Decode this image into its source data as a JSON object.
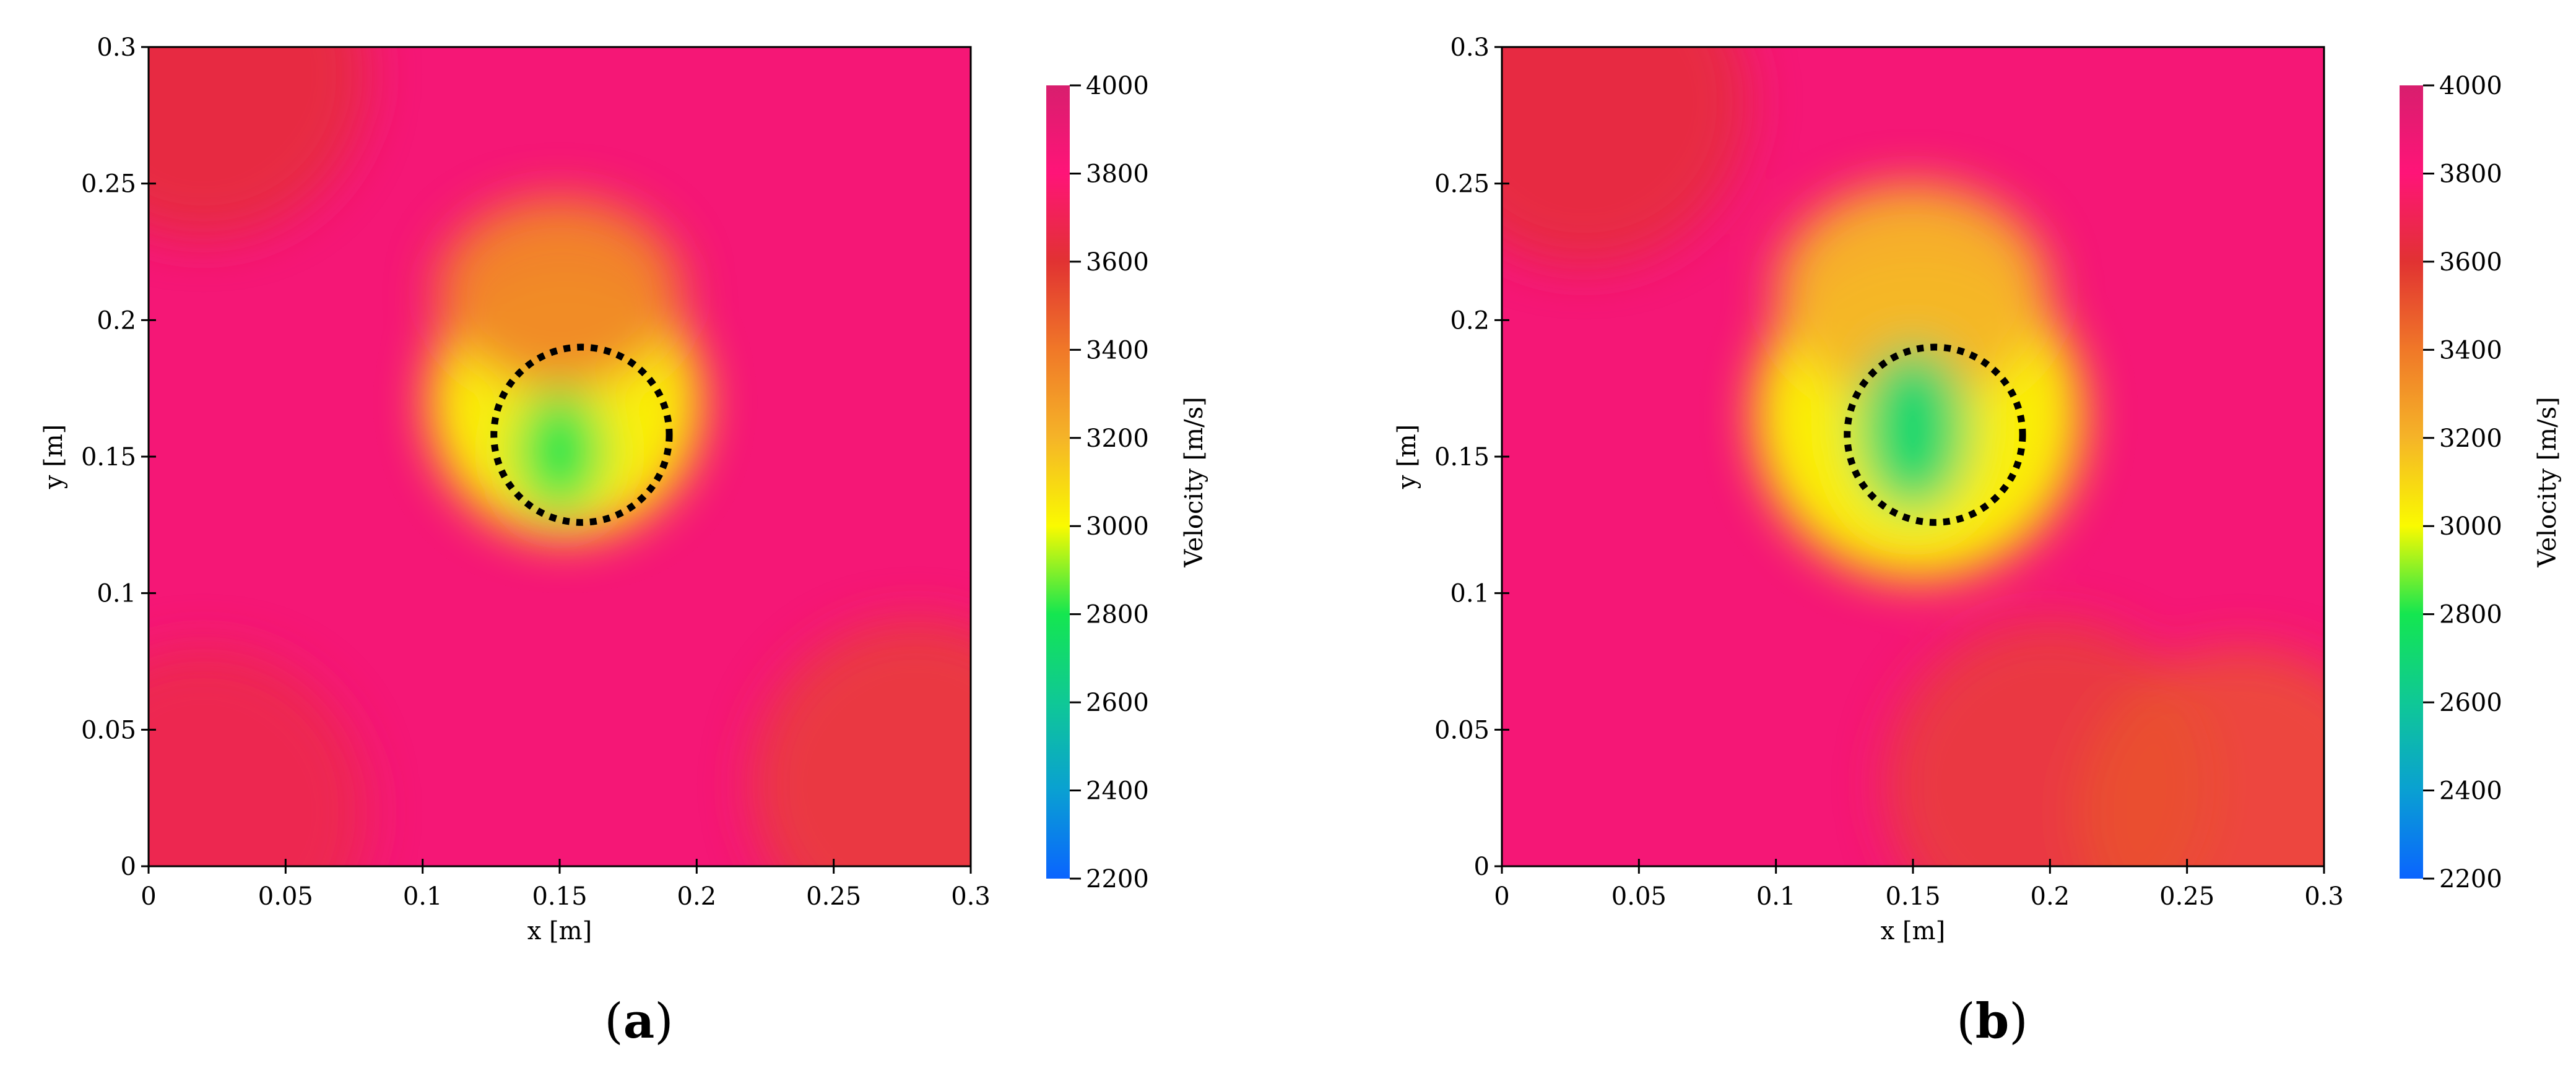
{
  "colors": {
    "text": "#000000",
    "axis": "#000000",
    "colormap": [
      "#0a64ff",
      "#0aa0d2",
      "#0fc896",
      "#14e650",
      "#fafa00",
      "#f5b428",
      "#f07828",
      "#e13232",
      "#ff1478",
      "#d81e6e"
    ]
  },
  "chart_data": [
    {
      "type": "heatmap",
      "panel": "a",
      "caption": "(a)",
      "caption_letter": "a",
      "xlabel": "x [m]",
      "ylabel": "y [m]",
      "xlim": [
        0,
        0.3
      ],
      "ylim": [
        0,
        0.3
      ],
      "xticks": [
        "0",
        "0.05",
        "0.1",
        "0.15",
        "0.2",
        "0.25",
        "0.3"
      ],
      "yticks": [
        "0",
        "0.05",
        "0.1",
        "0.15",
        "0.2",
        "0.25",
        "0.3"
      ],
      "colorbar": {
        "label": "Velocity [m/s]",
        "range": [
          2200,
          4000
        ],
        "ticks": [
          "2200",
          "2400",
          "2600",
          "2800",
          "3000",
          "3200",
          "3400",
          "3600",
          "3800",
          "4000"
        ]
      },
      "background_velocity": 3850,
      "anomalies": [
        {
          "cx": 0.15,
          "cy": 0.152,
          "v": 2800,
          "sx": 0.016,
          "sy": 0.022
        },
        {
          "cx": 0.152,
          "cy": 0.17,
          "v": 3000,
          "sx": 0.05,
          "sy": 0.05
        },
        {
          "cx": 0.15,
          "cy": 0.21,
          "v": 3350,
          "sx": 0.045,
          "sy": 0.035
        }
      ],
      "regions": [
        {
          "cx": 0.02,
          "cy": 0.29,
          "v": 3600
        },
        {
          "cx": 0.28,
          "cy": 0.03,
          "v": 3550
        },
        {
          "cx": 0.02,
          "cy": 0.02,
          "v": 3650
        }
      ],
      "inclusion": {
        "cx": 0.158,
        "cy": 0.158,
        "r": 0.032
      }
    },
    {
      "type": "heatmap",
      "panel": "b",
      "caption": "(b)",
      "caption_letter": "b",
      "xlabel": "x [m]",
      "ylabel": "y [m]",
      "xlim": [
        0,
        0.3
      ],
      "ylim": [
        0,
        0.3
      ],
      "xticks": [
        "0",
        "0.05",
        "0.1",
        "0.15",
        "0.2",
        "0.25",
        "0.3"
      ],
      "yticks": [
        "0",
        "0.05",
        "0.1",
        "0.15",
        "0.2",
        "0.25",
        "0.3"
      ],
      "colorbar": {
        "label": "Velocity [m/s]",
        "range": [
          2200,
          4000
        ],
        "ticks": [
          "2200",
          "2400",
          "2600",
          "2800",
          "3000",
          "3200",
          "3400",
          "3600",
          "3800",
          "4000"
        ]
      },
      "background_velocity": 3850,
      "anomalies": [
        {
          "cx": 0.15,
          "cy": 0.16,
          "v": 2700,
          "sx": 0.02,
          "sy": 0.03
        },
        {
          "cx": 0.152,
          "cy": 0.165,
          "v": 3000,
          "sx": 0.06,
          "sy": 0.06
        },
        {
          "cx": 0.15,
          "cy": 0.21,
          "v": 3200,
          "sx": 0.05,
          "sy": 0.04
        }
      ],
      "regions": [
        {
          "cx": 0.03,
          "cy": 0.28,
          "v": 3600
        },
        {
          "cx": 0.2,
          "cy": 0.03,
          "v": 3550
        },
        {
          "cx": 0.27,
          "cy": 0.02,
          "v": 3500
        }
      ],
      "inclusion": {
        "cx": 0.158,
        "cy": 0.158,
        "r": 0.032
      }
    }
  ]
}
